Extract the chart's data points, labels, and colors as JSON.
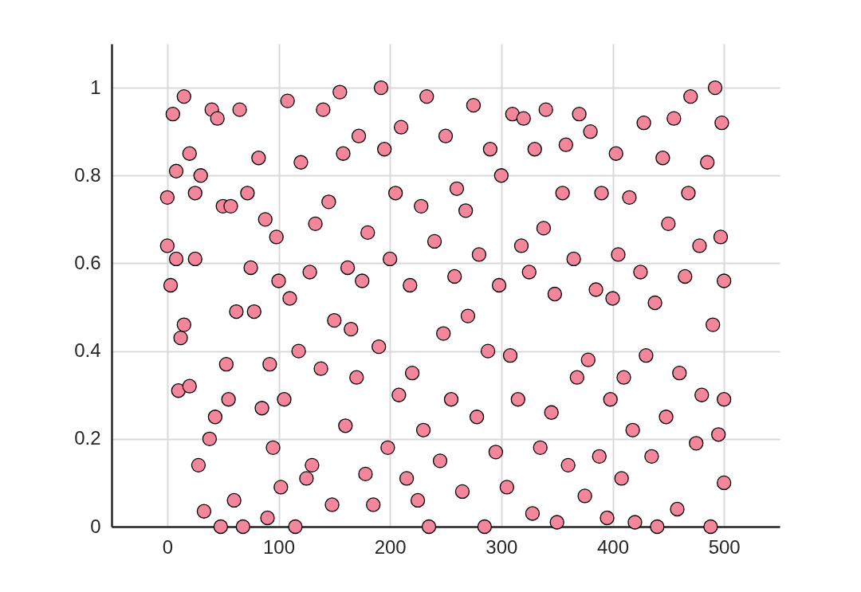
{
  "chart_data": {
    "type": "scatter",
    "marker": "circle",
    "grid": true,
    "xlim": [
      -50,
      550
    ],
    "xticks": [
      0,
      100,
      200,
      300,
      400,
      500
    ],
    "ylim": [
      0,
      1.1
    ],
    "yticks": [
      0,
      0.2,
      0.4,
      0.6,
      0.8,
      1
    ],
    "series": [
      {
        "color": "#f4869c",
        "x": [
          0,
          0,
          3,
          5,
          8,
          8,
          10,
          12,
          15,
          15,
          20,
          20,
          25,
          25,
          28,
          30,
          33,
          38,
          40,
          43,
          45,
          48,
          50,
          53,
          55,
          57,
          60,
          62,
          65,
          68,
          72,
          75,
          78,
          82,
          85,
          88,
          90,
          92,
          95,
          98,
          100,
          102,
          105,
          108,
          110,
          115,
          118,
          120,
          125,
          128,
          130,
          133,
          138,
          140,
          145,
          148,
          150,
          155,
          158,
          160,
          162,
          165,
          170,
          172,
          175,
          178,
          180,
          185,
          190,
          192,
          195,
          198,
          200,
          205,
          208,
          210,
          215,
          218,
          220,
          225,
          228,
          230,
          233,
          235,
          240,
          245,
          248,
          250,
          255,
          258,
          260,
          265,
          268,
          270,
          275,
          278,
          280,
          285,
          288,
          290,
          295,
          298,
          300,
          305,
          308,
          310,
          315,
          318,
          320,
          325,
          328,
          330,
          335,
          338,
          340,
          345,
          348,
          350,
          355,
          358,
          360,
          365,
          368,
          370,
          375,
          378,
          380,
          385,
          388,
          390,
          395,
          398,
          400,
          403,
          405,
          408,
          410,
          415,
          418,
          420,
          425,
          428,
          430,
          435,
          438,
          440,
          445,
          448,
          450,
          455,
          458,
          460,
          465,
          468,
          470,
          475,
          478,
          480,
          485,
          488,
          490,
          492,
          495,
          497,
          500,
          500,
          498,
          500
        ],
        "values": [
          0.75,
          0.64,
          0.55,
          0.94,
          0.61,
          0.81,
          0.31,
          0.43,
          0.46,
          0.98,
          0.32,
          0.85,
          0.76,
          0.61,
          0.14,
          0.8,
          0.035,
          0.2,
          0.95,
          0.25,
          0.93,
          0.0,
          0.73,
          0.37,
          0.29,
          0.73,
          0.06,
          0.49,
          0.95,
          0.0,
          0.76,
          0.59,
          0.49,
          0.84,
          0.27,
          0.7,
          0.02,
          0.37,
          0.18,
          0.66,
          0.56,
          0.09,
          0.29,
          0.97,
          0.52,
          0.0,
          0.4,
          0.83,
          0.11,
          0.58,
          0.14,
          0.69,
          0.36,
          0.95,
          0.74,
          0.05,
          0.47,
          0.99,
          0.85,
          0.23,
          0.59,
          0.45,
          0.34,
          0.89,
          0.56,
          0.12,
          0.67,
          0.05,
          0.41,
          1.0,
          0.86,
          0.18,
          0.61,
          0.76,
          0.3,
          0.91,
          0.11,
          0.55,
          0.35,
          0.06,
          0.73,
          0.22,
          0.98,
          0.0,
          0.65,
          0.15,
          0.44,
          0.89,
          0.29,
          0.57,
          0.77,
          0.08,
          0.72,
          0.48,
          0.96,
          0.25,
          0.62,
          0.0,
          0.4,
          0.86,
          0.17,
          0.55,
          0.8,
          0.09,
          0.39,
          0.94,
          0.29,
          0.64,
          0.93,
          0.58,
          0.03,
          0.86,
          0.18,
          0.68,
          0.95,
          0.26,
          0.53,
          0.01,
          0.76,
          0.87,
          0.14,
          0.61,
          0.34,
          0.94,
          0.07,
          0.38,
          0.9,
          0.54,
          0.16,
          0.76,
          0.02,
          0.29,
          0.52,
          0.85,
          0.62,
          0.11,
          0.34,
          0.75,
          0.22,
          0.01,
          0.58,
          0.92,
          0.39,
          0.16,
          0.51,
          0.0,
          0.84,
          0.25,
          0.69,
          0.93,
          0.04,
          0.35,
          0.57,
          0.76,
          0.98,
          0.19,
          0.64,
          0.3,
          0.83,
          0.0,
          0.46,
          1.0,
          0.21,
          0.66,
          0.1,
          0.56,
          0.92,
          0.29
        ]
      }
    ]
  }
}
